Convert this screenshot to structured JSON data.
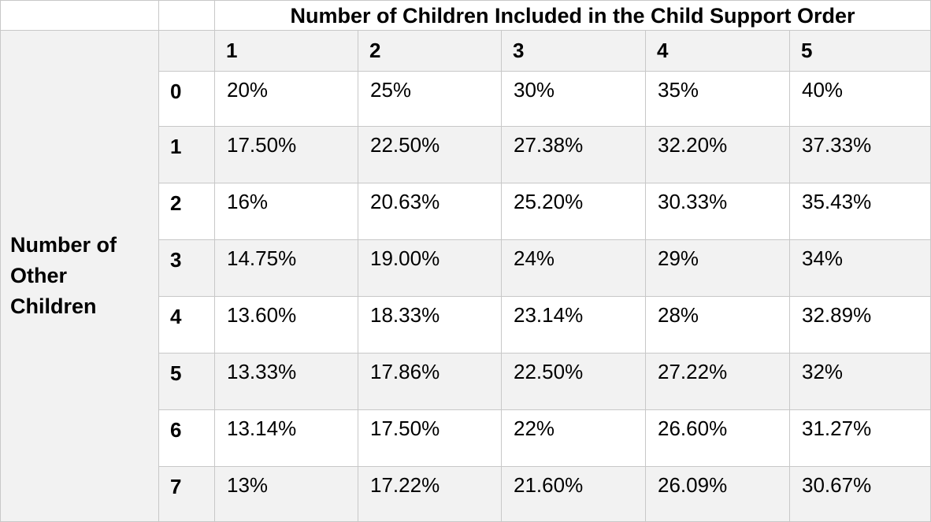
{
  "table": {
    "title": "Number of Children Included in the Child Support Order",
    "side_label_lines": [
      "Number of",
      "Other",
      "Children"
    ],
    "column_headers": [
      "1",
      "2",
      "3",
      "4",
      "5"
    ],
    "rows": [
      {
        "label": "0",
        "values": [
          "20%",
          "25%",
          "30%",
          "35%",
          "40%"
        ]
      },
      {
        "label": "1",
        "values": [
          "17.50%",
          "22.50%",
          "27.38%",
          "32.20%",
          "37.33%"
        ]
      },
      {
        "label": "2",
        "values": [
          "16%",
          "20.63%",
          "25.20%",
          "30.33%",
          "35.43%"
        ]
      },
      {
        "label": "3",
        "values": [
          "14.75%",
          "19.00%",
          "24%",
          "29%",
          "34%"
        ]
      },
      {
        "label": "4",
        "values": [
          "13.60%",
          "18.33%",
          "23.14%",
          "28%",
          "32.89%"
        ]
      },
      {
        "label": "5",
        "values": [
          "13.33%",
          "17.86%",
          "22.50%",
          "27.22%",
          "32%"
        ]
      },
      {
        "label": "6",
        "values": [
          "13.14%",
          "17.50%",
          "22%",
          "26.60%",
          "31.27%"
        ]
      },
      {
        "label": "7",
        "values": [
          "13%",
          "17.22%",
          "21.60%",
          "26.09%",
          "30.67%"
        ]
      }
    ]
  },
  "colors": {
    "stripe": "#f2f2f2",
    "border": "#c8c8c8"
  }
}
